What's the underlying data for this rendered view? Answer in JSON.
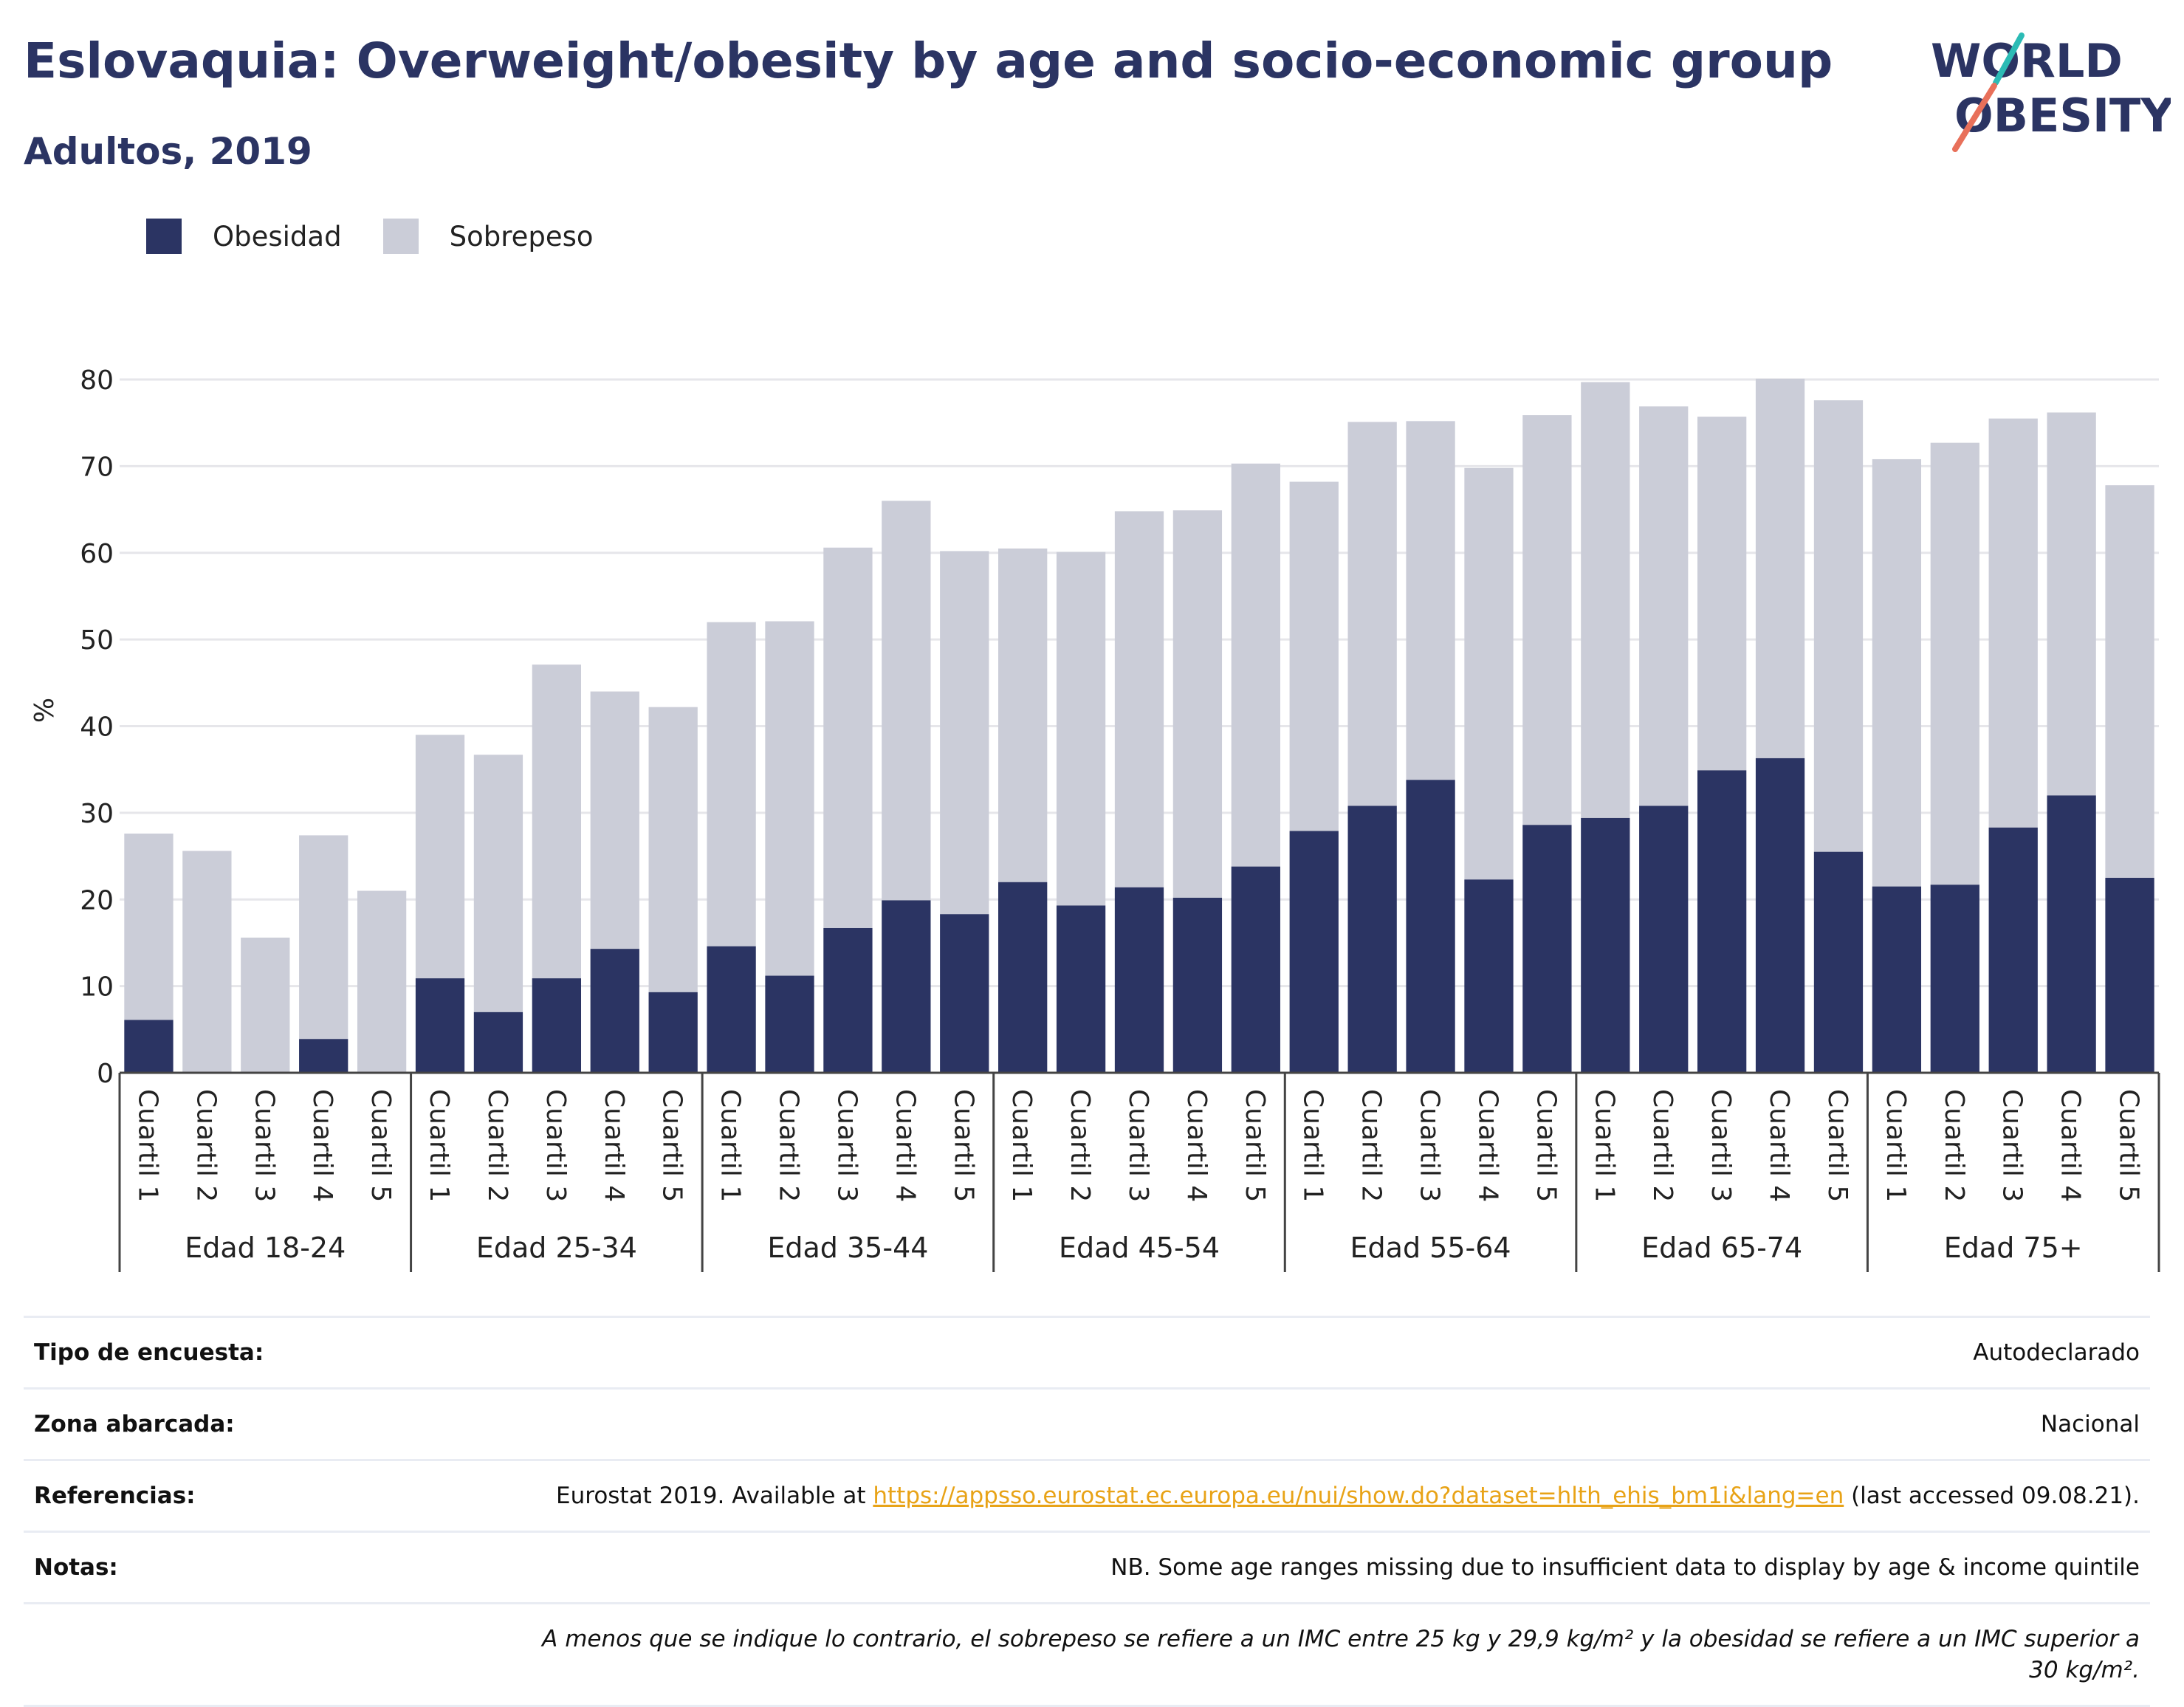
{
  "header": {
    "title": "Eslovaquia: Overweight/obesity by age and socio-economic group",
    "subtitle": "Adultos, 2019",
    "logo_line1": "WORLD",
    "logo_line2": "OBESITY"
  },
  "colors": {
    "obesity": "#2b3463",
    "overweight": "#cbcdd8",
    "title": "#2b3463",
    "link": "#e8a317",
    "logo_teal": "#2bbbb5",
    "logo_coral": "#e8705a"
  },
  "legend": [
    {
      "label": "Obesidad",
      "color": "#2b3463"
    },
    {
      "label": "Sobrepeso",
      "color": "#cbcdd8"
    }
  ],
  "chart_data": {
    "type": "bar",
    "stacked": true,
    "ylabel": "%",
    "ylim": [
      0,
      80
    ],
    "yticks": [
      0,
      10,
      20,
      30,
      40,
      50,
      60,
      70,
      80
    ],
    "grid": true,
    "legend_position": "top-left",
    "groups": [
      "Edad 18-24",
      "Edad 25-34",
      "Edad 35-44",
      "Edad 45-54",
      "Edad 55-64",
      "Edad 65-74",
      "Edad 75+"
    ],
    "categories": [
      "Cuartil 1",
      "Cuartil 2",
      "Cuartil 3",
      "Cuartil 4",
      "Cuartil 5"
    ],
    "series": [
      {
        "name": "Obesidad",
        "values": [
          [
            6.1,
            0,
            0,
            3.9,
            0
          ],
          [
            10.9,
            7.0,
            10.9,
            14.3,
            9.3
          ],
          [
            14.6,
            11.2,
            16.7,
            19.9,
            18.3
          ],
          [
            22.0,
            19.3,
            21.4,
            20.2,
            23.8
          ],
          [
            27.9,
            30.8,
            33.8,
            22.3,
            28.6
          ],
          [
            29.4,
            30.8,
            34.9,
            36.3,
            25.5
          ],
          [
            21.5,
            21.7,
            28.3,
            32.0,
            22.5
          ]
        ]
      },
      {
        "name": "Sobrepeso",
        "values": [
          [
            21.5,
            25.6,
            15.6,
            23.5,
            21.0
          ],
          [
            28.1,
            29.7,
            36.2,
            29.7,
            32.9
          ],
          [
            37.4,
            40.9,
            43.9,
            46.1,
            41.9
          ],
          [
            38.5,
            40.8,
            43.4,
            44.7,
            46.5
          ],
          [
            40.3,
            44.3,
            41.4,
            47.5,
            47.3
          ],
          [
            50.3,
            46.1,
            40.8,
            43.8,
            52.1
          ],
          [
            49.3,
            51.0,
            47.2,
            44.2,
            45.3
          ]
        ]
      }
    ]
  },
  "info": {
    "survey_label": "Tipo de encuesta:",
    "survey_value": "Autodeclarado",
    "area_label": "Zona abarcada:",
    "area_value": "Nacional",
    "references_label": "Referencias:",
    "references_prefix": "Eurostat 2019. Available at ",
    "references_link": "https://appsso.eurostat.ec.europa.eu/nui/show.do?dataset=hlth_ehis_bm1i&lang=en",
    "references_suffix": " (last accessed 09.08.21).",
    "notes_label": "Notas:",
    "notes_value": "NB. Some age ranges missing due to insufficient data to display by age & income quintile",
    "footnote": "A menos que se indique lo contrario, el sobrepeso se refiere a un IMC entre 25 kg y 29,9 kg/m² y la obesidad se refiere a un IMC superior a 30 kg/m²."
  }
}
